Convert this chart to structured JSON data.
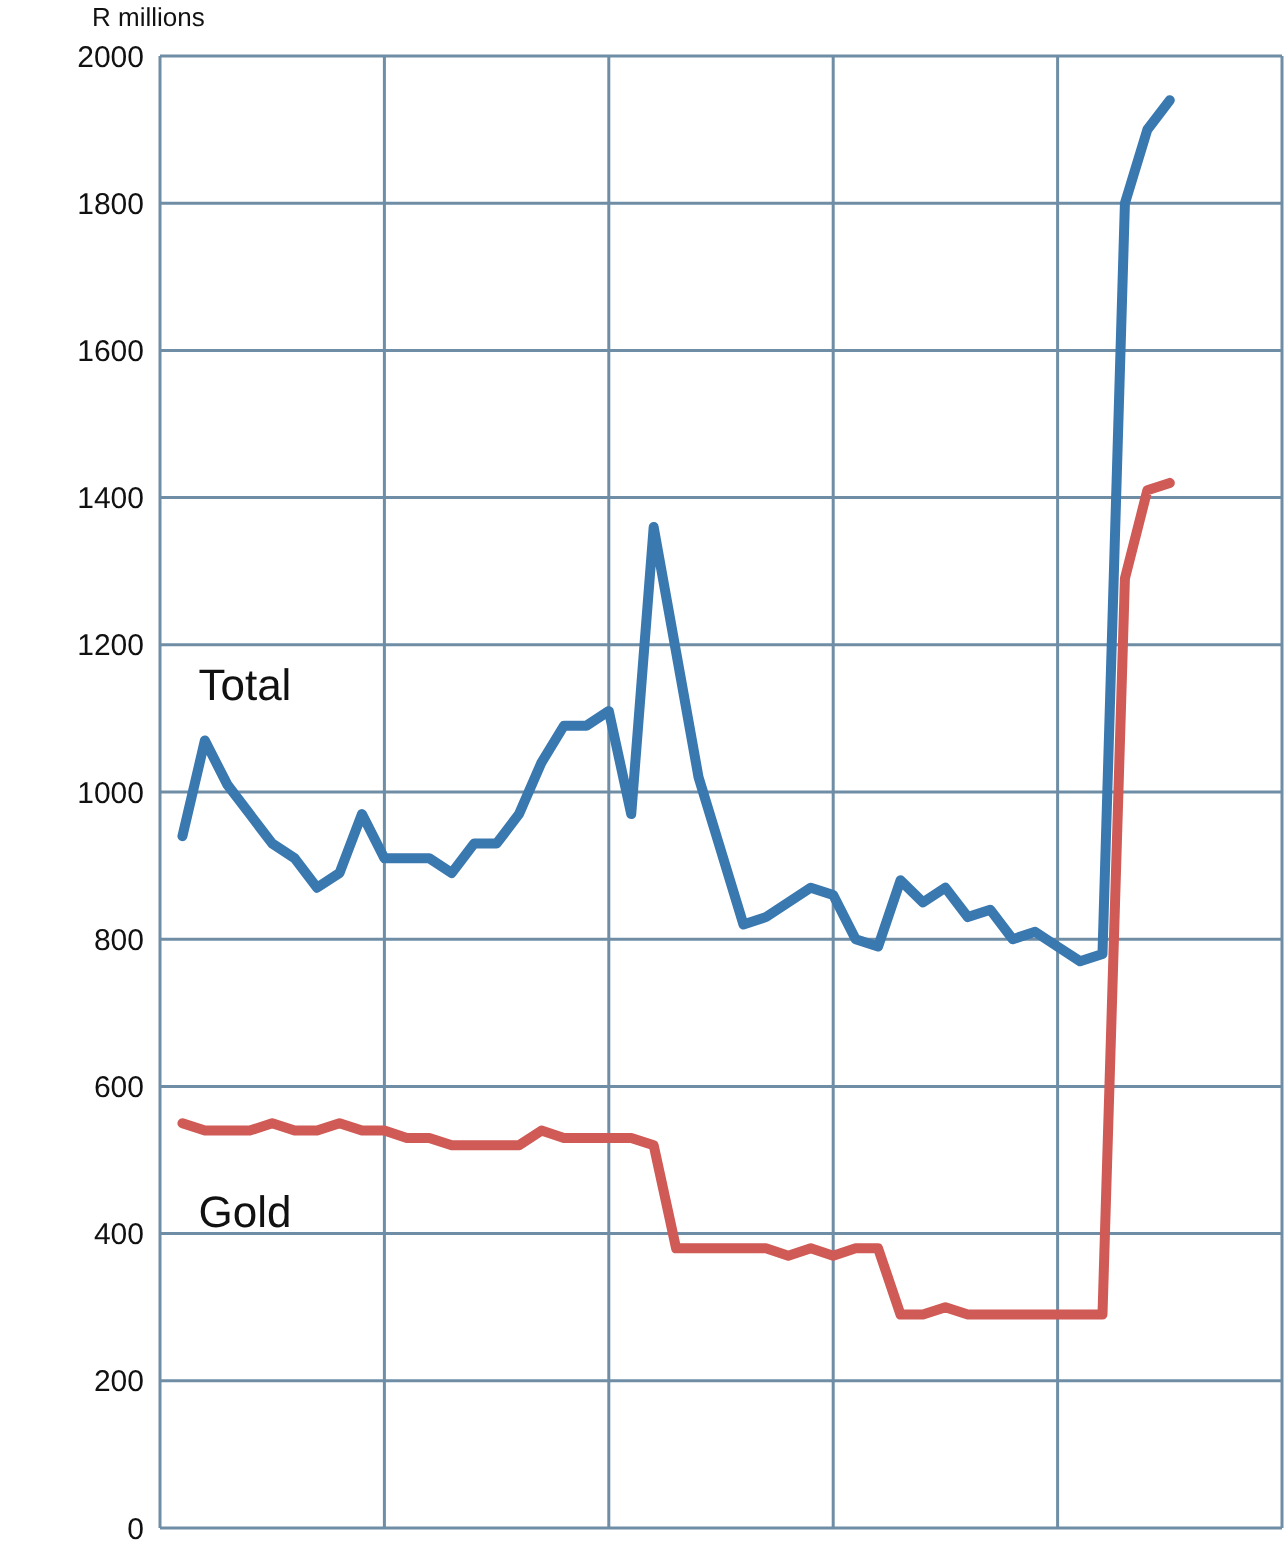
{
  "chart_data": {
    "type": "line",
    "ylabel": "R millions",
    "categories": [
      null,
      null,
      null,
      null,
      null,
      null,
      null,
      null,
      null,
      null,
      null,
      null,
      null,
      null,
      null,
      null,
      null,
      null,
      null,
      null,
      null,
      null,
      null,
      null,
      null,
      null,
      null,
      null,
      null,
      null,
      null,
      null,
      null,
      null,
      null,
      null,
      null,
      null,
      null,
      null,
      null,
      null,
      null,
      null,
      null,
      null,
      null,
      null,
      null,
      null,
      null
    ],
    "ylim": [
      0,
      2000
    ],
    "yticks": [
      0,
      200,
      400,
      600,
      800,
      1000,
      1200,
      1400,
      1600,
      1800,
      2000
    ],
    "tick_labels": "y",
    "grid": true,
    "marker": "none",
    "line_style": "solid",
    "series": [
      {
        "name": "Total",
        "color": "#3a78b0",
        "values": [
          null,
          940,
          1070,
          1010,
          970,
          930,
          910,
          870,
          890,
          970,
          910,
          910,
          910,
          890,
          930,
          930,
          970,
          1040,
          1090,
          1090,
          1110,
          970,
          1360,
          1190,
          1020,
          920,
          820,
          830,
          850,
          870,
          860,
          800,
          790,
          880,
          850,
          870,
          830,
          840,
          800,
          810,
          790,
          770,
          780,
          1800,
          1900,
          1940,
          null,
          null,
          null,
          null,
          null
        ]
      },
      {
        "name": "Gold",
        "color": "#d05a55",
        "values": [
          null,
          550,
          540,
          540,
          540,
          550,
          540,
          540,
          550,
          540,
          540,
          530,
          530,
          520,
          520,
          520,
          520,
          540,
          530,
          530,
          530,
          530,
          520,
          380,
          380,
          380,
          380,
          380,
          370,
          380,
          370,
          380,
          380,
          290,
          290,
          300,
          290,
          290,
          290,
          290,
          290,
          290,
          290,
          1290,
          1410,
          1420,
          null,
          null,
          null,
          null,
          null
        ]
      }
    ]
  }
}
